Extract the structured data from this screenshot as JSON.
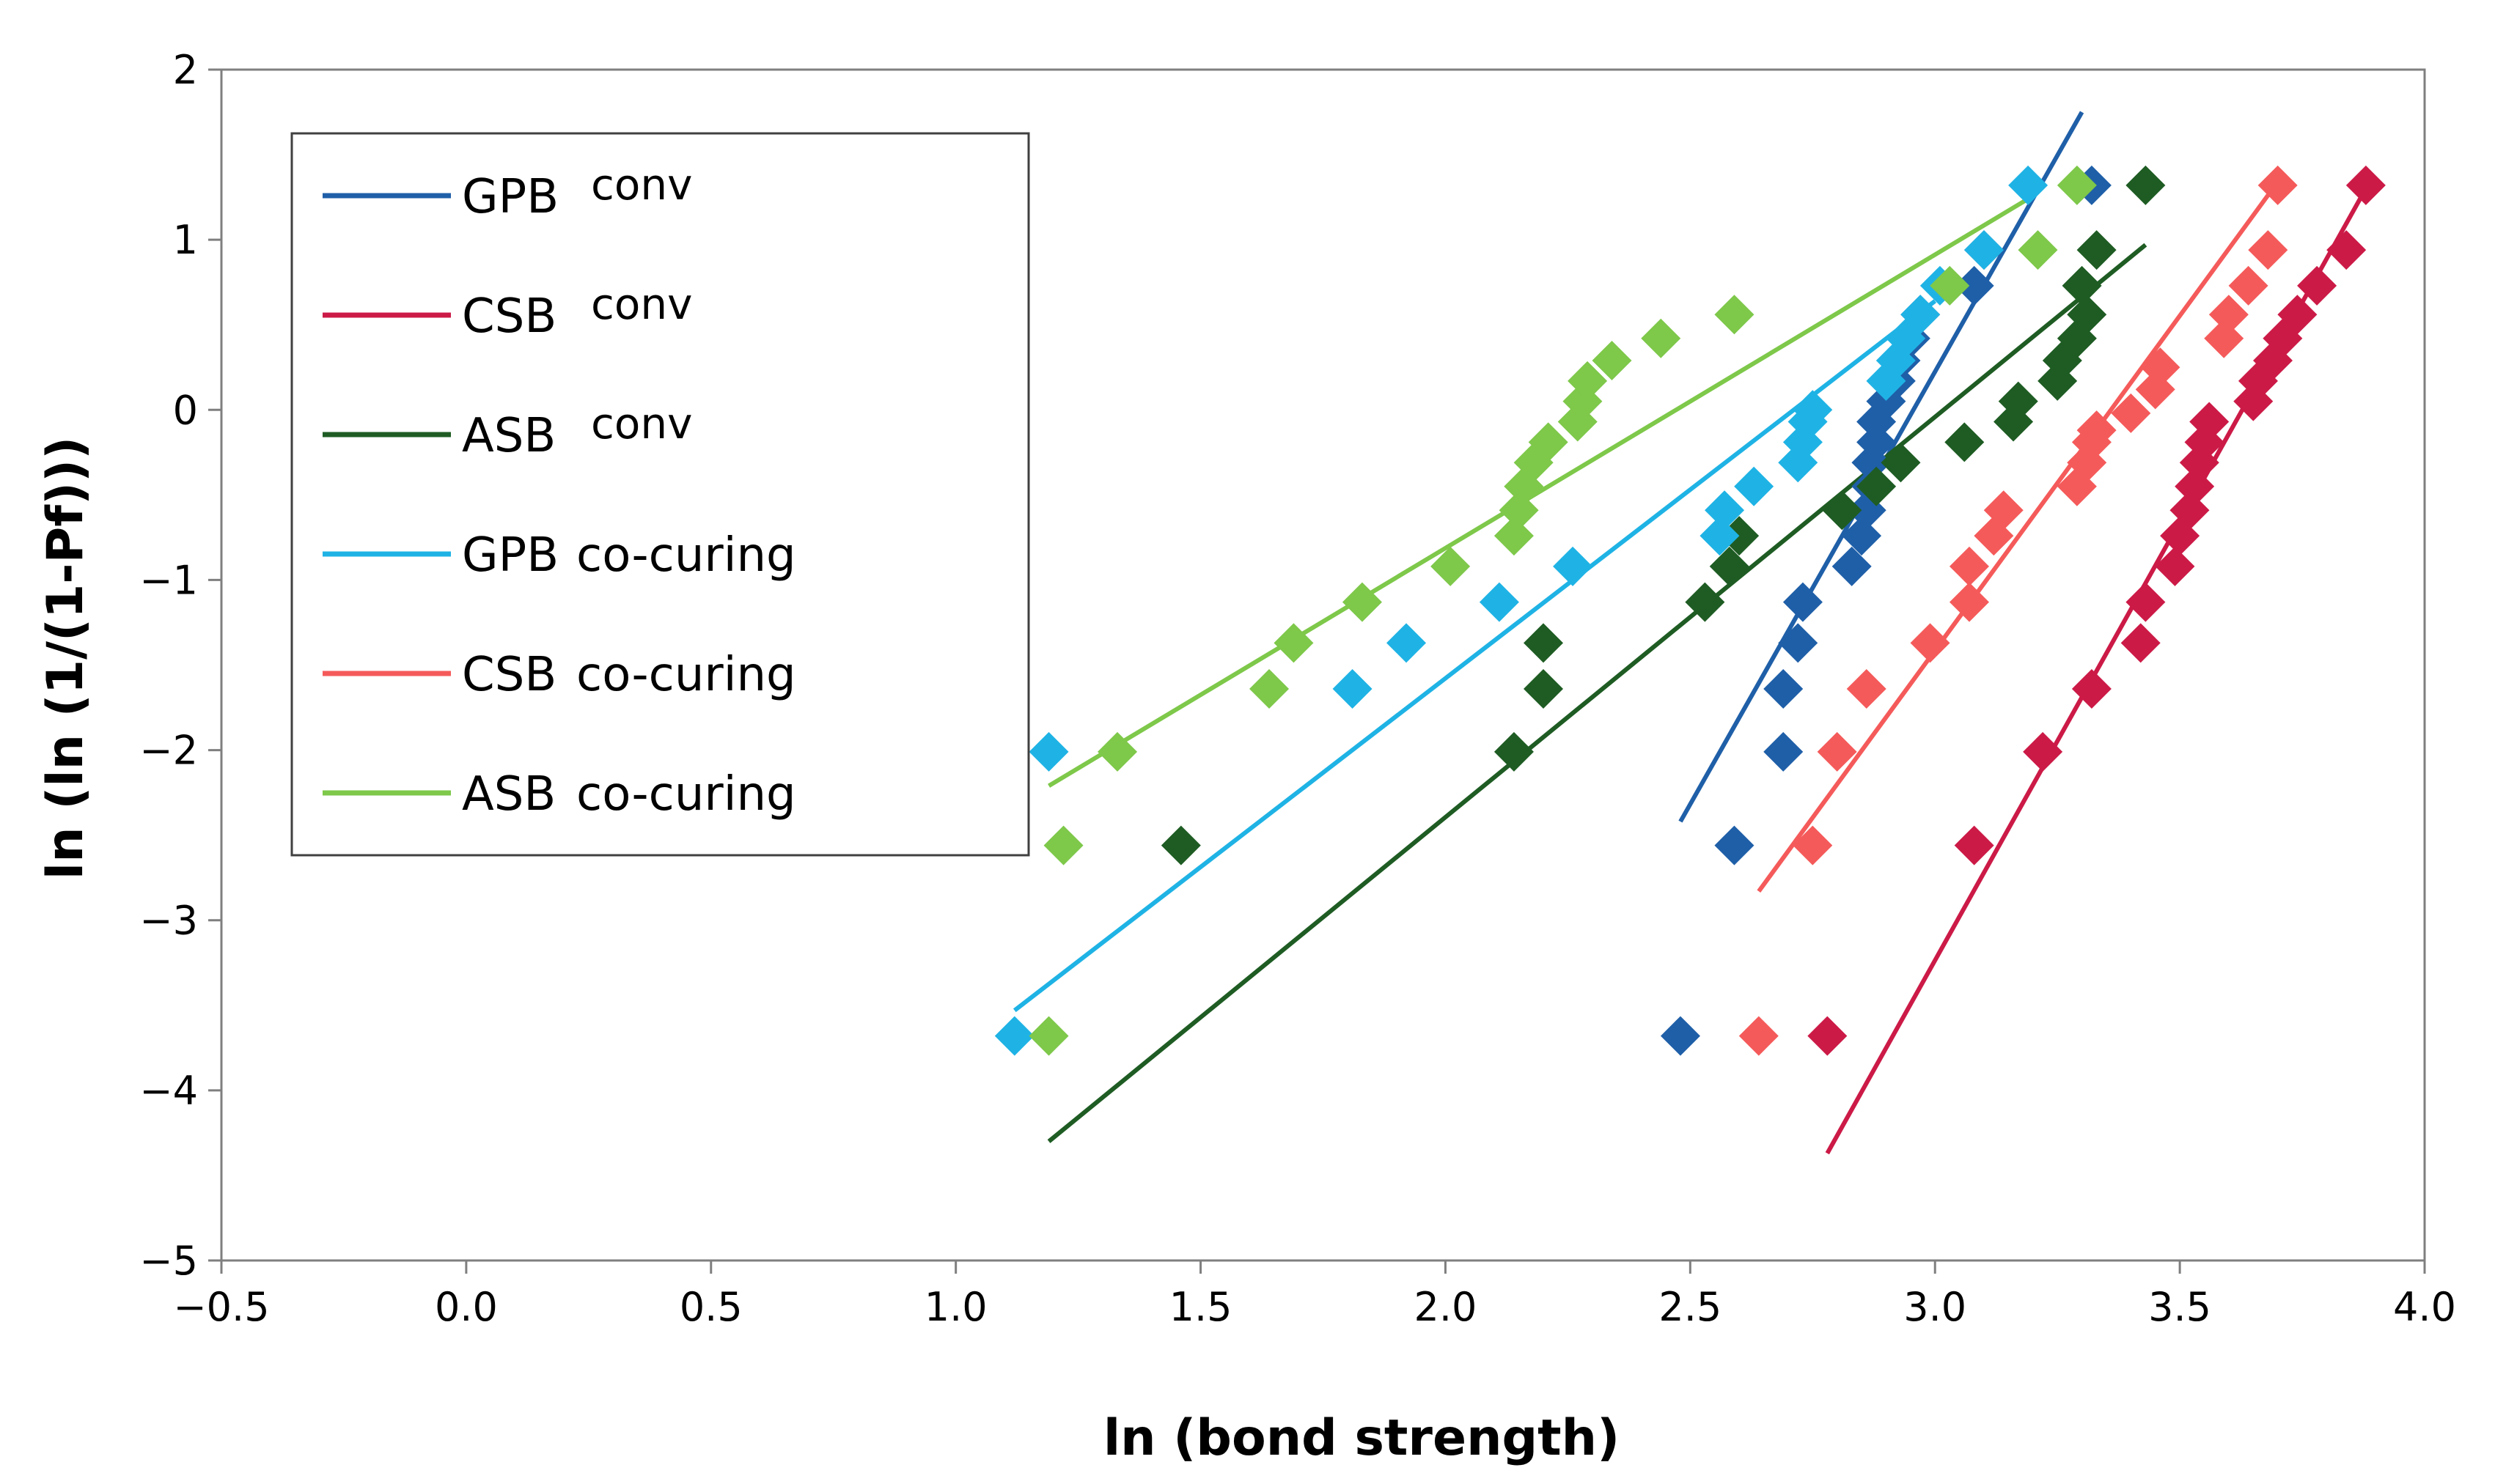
{
  "chart_data": {
    "type": "scatter",
    "xlabel": "ln (bond strength)",
    "ylabel": "ln (ln (1/(1-Pf)))",
    "xlim": [
      -0.5,
      4.0
    ],
    "ylim": [
      -5,
      2
    ],
    "xticks": [
      -0.5,
      0.0,
      0.5,
      1.0,
      1.5,
      2.0,
      2.5,
      3.0,
      3.5,
      4.0
    ],
    "xtick_labels": [
      "−0.5",
      "0.0",
      "0.5",
      "1.0",
      "1.5",
      "2.0",
      "2.5",
      "3.0",
      "3.5",
      "4.0"
    ],
    "yticks": [
      2,
      1,
      0,
      -1,
      -2,
      -3,
      -4,
      -5
    ],
    "ytick_labels": [
      "2",
      "1",
      "0",
      "−1",
      "−2",
      "−3",
      "−4",
      "−5"
    ],
    "grid": false,
    "legend_position": "top-left",
    "series": [
      {
        "name": "GPB conv",
        "label_main": "GPB",
        "label_sup": "conv",
        "color": "#1f5fa8",
        "points": [
          [
            2.48,
            -3.68
          ],
          [
            2.59,
            -2.56
          ],
          [
            2.69,
            -2.01
          ],
          [
            2.69,
            -1.64
          ],
          [
            2.72,
            -1.37
          ],
          [
            2.73,
            -1.13
          ],
          [
            2.83,
            -0.92
          ],
          [
            2.85,
            -0.74
          ],
          [
            2.86,
            -0.59
          ],
          [
            2.87,
            -0.45
          ],
          [
            2.87,
            -0.31
          ],
          [
            2.88,
            -0.19
          ],
          [
            2.88,
            -0.07
          ],
          [
            2.9,
            0.05
          ],
          [
            2.92,
            0.17
          ],
          [
            2.93,
            0.29
          ],
          [
            2.95,
            0.42
          ],
          [
            2.97,
            0.56
          ],
          [
            3.08,
            0.73
          ],
          [
            3.1,
            0.94
          ],
          [
            3.32,
            1.32
          ]
        ],
        "fit": [
          [
            2.48,
            -2.42
          ],
          [
            3.3,
            1.75
          ]
        ]
      },
      {
        "name": "CSB conv",
        "label_main": "CSB",
        "label_sup": "conv",
        "color": "#cc1a47",
        "points": [
          [
            2.78,
            -3.68
          ],
          [
            3.08,
            -2.56
          ],
          [
            3.22,
            -2.01
          ],
          [
            3.32,
            -1.64
          ],
          [
            3.42,
            -1.37
          ],
          [
            3.43,
            -1.13
          ],
          [
            3.49,
            -0.92
          ],
          [
            3.5,
            -0.74
          ],
          [
            3.52,
            -0.59
          ],
          [
            3.53,
            -0.45
          ],
          [
            3.54,
            -0.31
          ],
          [
            3.55,
            -0.19
          ],
          [
            3.56,
            -0.07
          ],
          [
            3.65,
            0.05
          ],
          [
            3.66,
            0.17
          ],
          [
            3.69,
            0.29
          ],
          [
            3.71,
            0.42
          ],
          [
            3.74,
            0.56
          ],
          [
            3.78,
            0.73
          ],
          [
            3.84,
            0.94
          ],
          [
            3.88,
            1.32
          ]
        ],
        "fit": [
          [
            2.78,
            -4.37
          ],
          [
            3.87,
            1.25
          ]
        ]
      },
      {
        "name": "ASB conv",
        "label_main": "ASB",
        "label_sup": "conv",
        "color": "#1e5c23",
        "points": [
          [
            1.46,
            -2.56
          ],
          [
            2.14,
            -2.01
          ],
          [
            2.2,
            -1.64
          ],
          [
            2.2,
            -1.37
          ],
          [
            2.53,
            -1.13
          ],
          [
            2.58,
            -0.92
          ],
          [
            2.6,
            -0.74
          ],
          [
            2.81,
            -0.59
          ],
          [
            2.88,
            -0.45
          ],
          [
            2.93,
            -0.31
          ],
          [
            3.06,
            -0.19
          ],
          [
            3.16,
            -0.07
          ],
          [
            3.17,
            0.05
          ],
          [
            3.25,
            0.17
          ],
          [
            3.26,
            0.29
          ],
          [
            3.29,
            0.42
          ],
          [
            3.31,
            0.56
          ],
          [
            3.3,
            0.73
          ],
          [
            3.33,
            0.94
          ],
          [
            3.43,
            1.32
          ]
        ],
        "fit": [
          [
            1.19,
            -4.3
          ],
          [
            3.43,
            0.97
          ]
        ]
      },
      {
        "name": "GPB co-curing",
        "label_main": "GPB",
        "label_sup": "co-curing",
        "color": "#1fb3e5",
        "points": [
          [
            1.12,
            -3.68
          ],
          [
            1.19,
            -2.01
          ],
          [
            1.81,
            -1.64
          ],
          [
            1.92,
            -1.37
          ],
          [
            2.11,
            -1.13
          ],
          [
            2.26,
            -0.92
          ],
          [
            2.56,
            -0.74
          ],
          [
            2.57,
            -0.59
          ],
          [
            2.63,
            -0.45
          ],
          [
            2.72,
            -0.31
          ],
          [
            2.73,
            -0.19
          ],
          [
            2.74,
            -0.07
          ],
          [
            2.75,
            0.0
          ],
          [
            2.9,
            0.17
          ],
          [
            2.92,
            0.29
          ],
          [
            2.94,
            0.42
          ],
          [
            2.97,
            0.56
          ],
          [
            3.01,
            0.73
          ],
          [
            3.1,
            0.94
          ],
          [
            3.19,
            1.32
          ]
        ],
        "fit": [
          [
            1.12,
            -3.53
          ],
          [
            3.0,
            0.64
          ]
        ]
      },
      {
        "name": "CSB co-curing",
        "label_main": "CSB",
        "label_sup": "co-curing",
        "color": "#f55a5a",
        "points": [
          [
            2.64,
            -3.68
          ],
          [
            2.75,
            -2.56
          ],
          [
            2.8,
            -2.01
          ],
          [
            2.86,
            -1.64
          ],
          [
            2.99,
            -1.37
          ],
          [
            3.07,
            -1.13
          ],
          [
            3.07,
            -0.92
          ],
          [
            3.12,
            -0.74
          ],
          [
            3.14,
            -0.59
          ],
          [
            3.29,
            -0.45
          ],
          [
            3.31,
            -0.31
          ],
          [
            3.32,
            -0.19
          ],
          [
            3.33,
            -0.12
          ],
          [
            3.4,
            -0.02
          ],
          [
            3.45,
            0.12
          ],
          [
            3.46,
            0.25
          ],
          [
            3.59,
            0.42
          ],
          [
            3.6,
            0.56
          ],
          [
            3.64,
            0.73
          ],
          [
            3.68,
            0.94
          ],
          [
            3.7,
            1.32
          ]
        ],
        "fit": [
          [
            2.64,
            -2.83
          ],
          [
            3.7,
            1.34
          ]
        ]
      },
      {
        "name": "ASB co-curing",
        "label_main": "ASB",
        "label_sup": "co-curing",
        "color": "#7ec84a",
        "points": [
          [
            1.19,
            -3.68
          ],
          [
            1.22,
            -2.56
          ],
          [
            1.33,
            -2.01
          ],
          [
            1.64,
            -1.64
          ],
          [
            1.69,
            -1.37
          ],
          [
            1.83,
            -1.13
          ],
          [
            2.01,
            -0.92
          ],
          [
            2.14,
            -0.74
          ],
          [
            2.15,
            -0.59
          ],
          [
            2.16,
            -0.45
          ],
          [
            2.18,
            -0.31
          ],
          [
            2.21,
            -0.19
          ],
          [
            2.27,
            -0.07
          ],
          [
            2.28,
            0.05
          ],
          [
            2.29,
            0.17
          ],
          [
            2.34,
            0.29
          ],
          [
            2.44,
            0.42
          ],
          [
            2.59,
            0.56
          ],
          [
            3.03,
            0.73
          ],
          [
            3.21,
            0.94
          ],
          [
            3.29,
            1.32
          ]
        ],
        "fit": [
          [
            1.19,
            -2.21
          ],
          [
            3.19,
            1.24
          ]
        ]
      }
    ]
  }
}
